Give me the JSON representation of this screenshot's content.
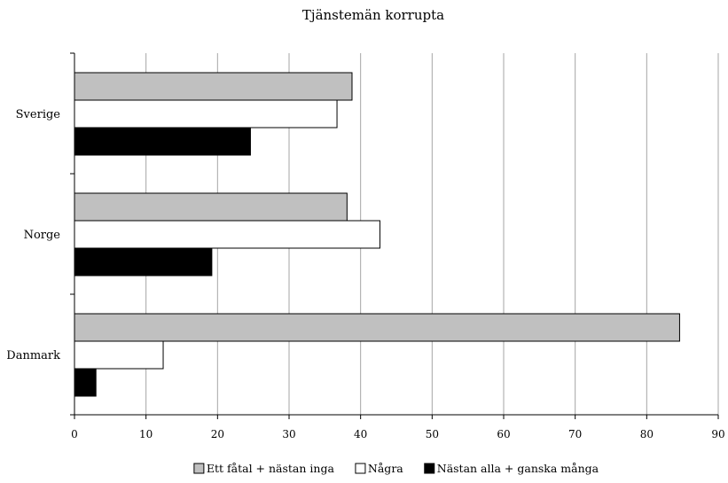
{
  "chart_data": {
    "type": "bar",
    "orientation": "horizontal",
    "title": "Tjänstemän korrupta",
    "xlabel": "",
    "ylabel": "",
    "categories": [
      "Sverige",
      "Norge",
      "Danmark"
    ],
    "series": [
      {
        "name": "Ett fåtal + nästan inga",
        "color": "#c0c0c0",
        "values": [
          38.8,
          38.1,
          84.6
        ]
      },
      {
        "name": "Några",
        "color": "#ffffff",
        "values": [
          36.7,
          42.7,
          12.4
        ]
      },
      {
        "name": "Nästan alla + ganska många",
        "color": "#000000",
        "values": [
          24.6,
          19.2,
          3.0
        ]
      }
    ],
    "xlim": [
      0,
      90
    ],
    "xticks": [
      0,
      10,
      20,
      30,
      40,
      50,
      60,
      70,
      80,
      90
    ],
    "grid": "vertical",
    "legend_position": "bottom"
  }
}
